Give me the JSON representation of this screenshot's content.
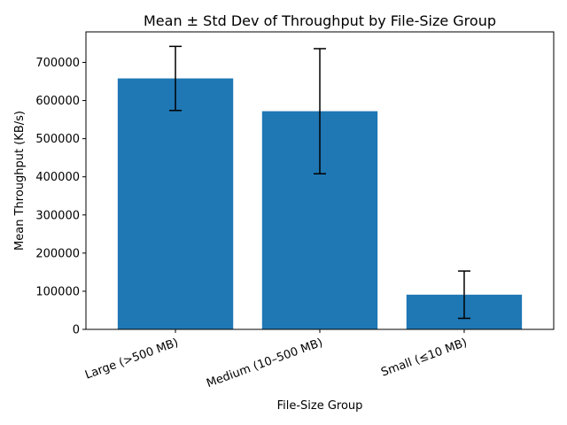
{
  "chart_data": {
    "type": "bar",
    "title": "Mean ± Std Dev of Throughput by File-Size Group",
    "xlabel": "File-Size Group",
    "ylabel": "Mean Throughput (KB/s)",
    "categories": [
      "Large (>500 MB)",
      "Medium (10–500 MB)",
      "Small (≤10 MB)"
    ],
    "values": [
      658000,
      572000,
      91000
    ],
    "error": [
      84000,
      164000,
      62000
    ],
    "ylim": [
      0,
      780000
    ],
    "yticks": [
      0,
      100000,
      200000,
      300000,
      400000,
      500000,
      600000,
      700000
    ],
    "ytick_labels": [
      "0",
      "100000",
      "200000",
      "300000",
      "400000",
      "500000",
      "600000",
      "700000"
    ],
    "bar_color": "#1f77b4",
    "error_color": "#000000",
    "grid": false,
    "legend": "none"
  }
}
